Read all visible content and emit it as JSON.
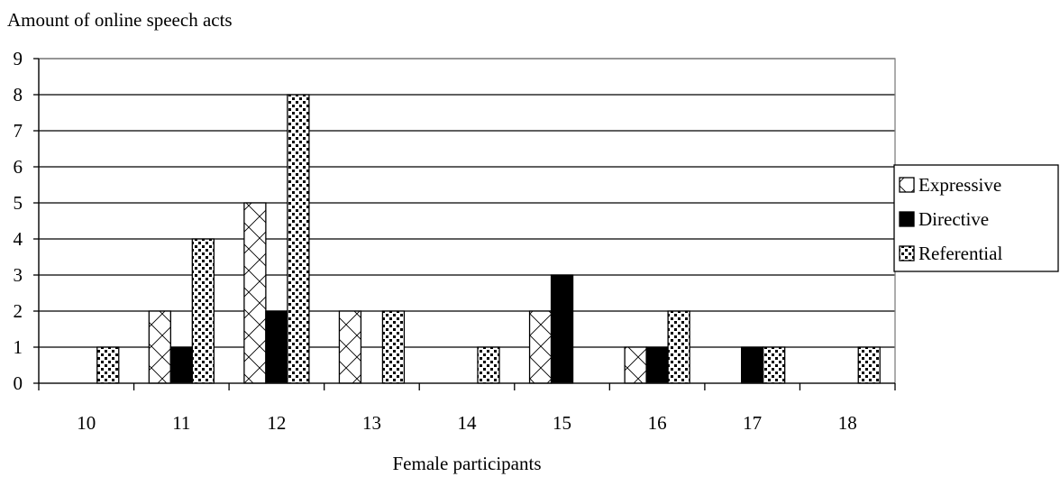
{
  "chart_data": {
    "type": "bar",
    "ylabel": "Amount of online speech acts",
    "xlabel": "Female participants",
    "categories": [
      "10",
      "11",
      "12",
      "13",
      "14",
      "15",
      "16",
      "17",
      "18"
    ],
    "series": [
      {
        "name": "Expressive",
        "pattern": "hatch",
        "values": [
          0,
          2,
          5,
          2,
          0,
          2,
          1,
          0,
          0
        ]
      },
      {
        "name": "Directive",
        "pattern": "solid",
        "values": [
          0,
          1,
          2,
          0,
          0,
          3,
          1,
          1,
          0
        ]
      },
      {
        "name": "Referential",
        "pattern": "dots",
        "values": [
          1,
          4,
          8,
          2,
          1,
          0,
          2,
          1,
          1
        ]
      }
    ],
    "ylim": [
      0,
      9
    ],
    "yticks": [
      "0",
      "1",
      "2",
      "3",
      "4",
      "5",
      "6",
      "7",
      "8",
      "9"
    ],
    "grid": true,
    "legend_position": "right"
  }
}
